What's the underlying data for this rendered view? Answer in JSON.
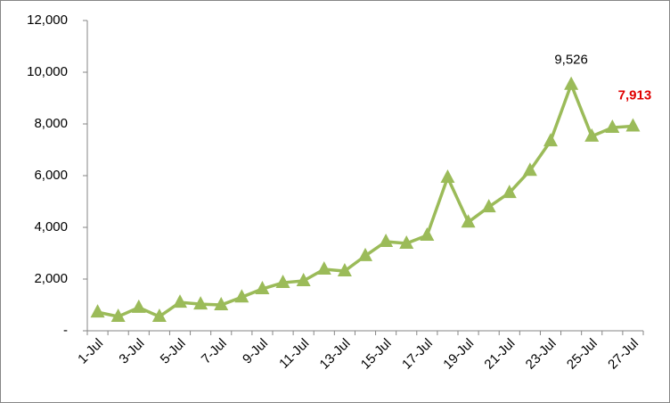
{
  "chart_data": {
    "type": "line",
    "categories": [
      "1-Jul",
      null,
      "3-Jul",
      null,
      "5-Jul",
      null,
      "7-Jul",
      null,
      "9-Jul",
      null,
      "11-Jul",
      null,
      "13-Jul",
      null,
      "15-Jul",
      null,
      "17-Jul",
      null,
      "19-Jul",
      null,
      "21-Jul",
      null,
      "23-Jul",
      null,
      "25-Jul",
      null,
      "27-Jul"
    ],
    "series": [
      {
        "color": "#9bbb59",
        "values": [
          720,
          550,
          900,
          550,
          1100,
          1030,
          1000,
          1300,
          1620,
          1860,
          1930,
          2380,
          2310,
          2900,
          3450,
          3380,
          3690,
          5930,
          4200,
          4790,
          5340,
          6200,
          7340,
          9526,
          7520,
          7860,
          7913
        ],
        "value_labels": [
          null,
          null,
          null,
          null,
          null,
          null,
          null,
          null,
          null,
          null,
          null,
          null,
          null,
          null,
          null,
          null,
          null,
          null,
          null,
          null,
          null,
          null,
          null,
          "9,526",
          null,
          null,
          "7,913"
        ]
      }
    ],
    "ylim": [
      0,
      12000
    ],
    "yticks": [
      {
        "value": 0,
        "label": "-"
      },
      {
        "value": 2000,
        "label": "2,000"
      },
      {
        "value": 4000,
        "label": "4,000"
      },
      {
        "value": 6000,
        "label": "6,000"
      },
      {
        "value": 8000,
        "label": "8,000"
      },
      {
        "value": 10000,
        "label": "10,000"
      },
      {
        "value": 12000,
        "label": "12,000"
      }
    ]
  }
}
